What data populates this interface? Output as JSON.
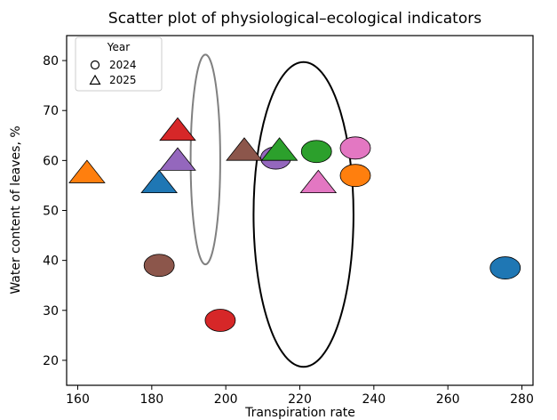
{
  "chart_data": {
    "type": "scatter",
    "title": "Scatter plot of physiological–ecological indicators",
    "xlabel": "Transpiration rate",
    "ylabel": "Water content of leaves, %",
    "xlim": [
      157,
      283
    ],
    "ylim": [
      15,
      85
    ],
    "xticks": [
      160,
      180,
      200,
      220,
      240,
      260,
      280
    ],
    "yticks": [
      20,
      30,
      40,
      50,
      60,
      70,
      80
    ],
    "grid": false,
    "legend": {
      "title": "Year",
      "placement": "top-left",
      "entries": [
        {
          "label": "2024",
          "marker": "circle"
        },
        {
          "label": "2025",
          "marker": "triangle"
        }
      ]
    },
    "points": [
      {
        "x": 275.5,
        "y": 38.5,
        "marker": "circle",
        "color": "#1f77b4"
      },
      {
        "x": 235,
        "y": 57,
        "marker": "circle",
        "color": "#ff7f0e"
      },
      {
        "x": 224.5,
        "y": 61.8,
        "marker": "circle",
        "color": "#2ca02c"
      },
      {
        "x": 198.5,
        "y": 28,
        "marker": "circle",
        "color": "#d62728"
      },
      {
        "x": 213.5,
        "y": 60.5,
        "marker": "circle",
        "color": "#9467bd"
      },
      {
        "x": 182,
        "y": 39,
        "marker": "circle",
        "color": "#8c564b"
      },
      {
        "x": 235,
        "y": 62.5,
        "marker": "circle",
        "color": "#e377c2"
      },
      {
        "x": 182,
        "y": 55.5,
        "marker": "triangle",
        "color": "#1f77b4"
      },
      {
        "x": 162.5,
        "y": 57.5,
        "marker": "triangle",
        "color": "#ff7f0e"
      },
      {
        "x": 214.5,
        "y": 62,
        "marker": "triangle",
        "color": "#2ca02c"
      },
      {
        "x": 187,
        "y": 66,
        "marker": "triangle",
        "color": "#d62728"
      },
      {
        "x": 187,
        "y": 60,
        "marker": "triangle",
        "color": "#9467bd"
      },
      {
        "x": 205,
        "y": 62,
        "marker": "triangle",
        "color": "#8c564b"
      },
      {
        "x": 225,
        "y": 55.5,
        "marker": "triangle",
        "color": "#e377c2"
      }
    ],
    "ellipses": [
      {
        "cx": 194.5,
        "cy": 60.2,
        "rx": 4,
        "ry": 21,
        "color": "#808080"
      },
      {
        "cx": 221,
        "cy": 49.2,
        "rx": 13.5,
        "ry": 30.5,
        "color": "#000000"
      }
    ]
  }
}
